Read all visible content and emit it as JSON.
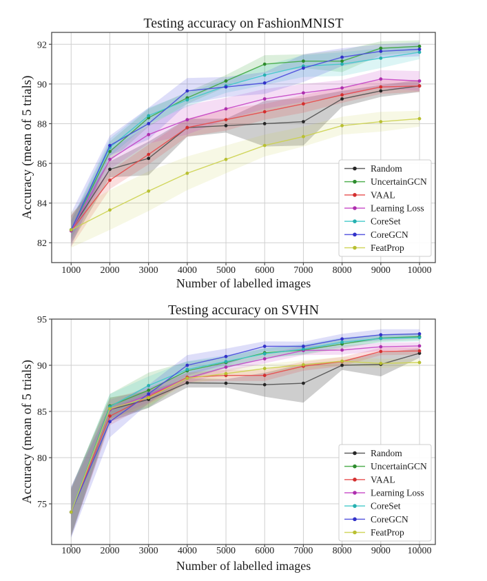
{
  "page": {
    "background": "#ffffff"
  },
  "chart_data": [
    {
      "type": "line",
      "title": "Testing accuracy on FashionMNIST",
      "xlabel": "Number of labelled images",
      "ylabel": "Accuracy (mean of 5 trials)",
      "x": [
        1000,
        2000,
        3000,
        4000,
        5000,
        6000,
        7000,
        8000,
        9000,
        10000
      ],
      "xticks": [
        1000,
        2000,
        3000,
        4000,
        5000,
        6000,
        7000,
        8000,
        9000,
        10000
      ],
      "yticks": [
        82,
        84,
        86,
        88,
        90,
        92
      ],
      "xlim": [
        497,
        10409
      ],
      "ylim": [
        81.0,
        92.6
      ],
      "grid": true,
      "legend_position": "lower right",
      "series": [
        {
          "name": "Random",
          "color": "#4f4f4f",
          "marker_color": "#262626",
          "band_alpha": 0.28,
          "values": [
            82.65,
            85.7,
            86.25,
            87.8,
            87.9,
            88.0,
            88.1,
            89.25,
            89.65,
            89.9
          ],
          "band": [
            0.7,
            0.4,
            0.85,
            0.45,
            0.35,
            1.15,
            1.2,
            0.4,
            0.3,
            0.3
          ]
        },
        {
          "name": "UncertainGCN",
          "color": "#3fa73f",
          "marker_color": "#2e8b2e",
          "band_alpha": 0.18,
          "values": [
            82.65,
            86.6,
            88.3,
            89.3,
            90.15,
            91.0,
            91.15,
            91.15,
            91.8,
            91.9
          ],
          "band": [
            0.45,
            0.5,
            0.45,
            0.3,
            0.3,
            0.45,
            0.35,
            0.55,
            0.35,
            0.3
          ]
        },
        {
          "name": "VAAL",
          "color": "#e84a4a",
          "marker_color": "#d32f2f",
          "band_alpha": 0.18,
          "values": [
            82.6,
            85.15,
            86.45,
            87.8,
            88.2,
            88.6,
            89.0,
            89.45,
            89.85,
            89.9
          ],
          "band": [
            0.8,
            0.45,
            0.5,
            0.45,
            0.55,
            0.4,
            0.45,
            0.4,
            0.35,
            0.3
          ]
        },
        {
          "name": "Learning Loss",
          "color": "#c544c5",
          "marker_color": "#ad2fad",
          "band_alpha": 0.18,
          "values": [
            82.6,
            86.2,
            87.45,
            88.2,
            88.75,
            89.25,
            89.55,
            89.8,
            90.25,
            90.15
          ],
          "band": [
            0.55,
            0.5,
            0.45,
            0.75,
            0.55,
            0.5,
            0.45,
            0.4,
            0.45,
            0.5
          ]
        },
        {
          "name": "CoreSet",
          "color": "#3fc9c9",
          "marker_color": "#27b0b0",
          "band_alpha": 0.18,
          "values": [
            82.65,
            86.8,
            88.4,
            89.2,
            89.9,
            90.45,
            90.9,
            91.0,
            91.3,
            91.6
          ],
          "band": [
            0.5,
            0.45,
            0.4,
            0.35,
            0.35,
            0.5,
            0.55,
            0.6,
            0.5,
            0.35
          ]
        },
        {
          "name": "CoreGCN",
          "color": "#4848dc",
          "marker_color": "#3232c8",
          "band_alpha": 0.18,
          "values": [
            82.65,
            86.9,
            88.0,
            89.65,
            89.85,
            90.05,
            90.8,
            91.35,
            91.65,
            91.75
          ],
          "band": [
            0.85,
            0.5,
            0.8,
            0.65,
            0.5,
            0.55,
            0.7,
            0.45,
            0.35,
            0.35
          ]
        },
        {
          "name": "FeatProp",
          "color": "#ccd24e",
          "marker_color": "#b8bf32",
          "band_alpha": 0.15,
          "values": [
            82.65,
            83.65,
            84.6,
            85.5,
            86.2,
            86.9,
            87.35,
            87.9,
            88.1,
            88.25
          ],
          "band": [
            0.9,
            1.0,
            1.0,
            0.85,
            0.7,
            0.55,
            0.5,
            0.45,
            0.5,
            0.4
          ]
        }
      ]
    },
    {
      "type": "line",
      "title": "Testing accuracy on SVHN",
      "xlabel": "Number of labelled images",
      "ylabel": "Accuracy (mean of 5 trials)",
      "x": [
        1000,
        2000,
        3000,
        4000,
        5000,
        6000,
        7000,
        8000,
        9000,
        10000
      ],
      "xticks": [
        1000,
        2000,
        3000,
        4000,
        5000,
        6000,
        7000,
        8000,
        9000,
        10000
      ],
      "yticks": [
        75,
        80,
        85,
        90,
        95
      ],
      "xlim": [
        497,
        10409
      ],
      "ylim": [
        70.6,
        95.0
      ],
      "grid": true,
      "legend_position": "lower right",
      "series": [
        {
          "name": "Random",
          "color": "#4f4f4f",
          "marker_color": "#262626",
          "band_alpha": 0.28,
          "values": [
            74.1,
            85.2,
            86.3,
            88.1,
            88.05,
            87.9,
            88.05,
            90.0,
            90.1,
            91.3
          ],
          "band": [
            2.7,
            1.3,
            0.9,
            0.5,
            0.45,
            1.3,
            2.1,
            0.5,
            1.3,
            0.5
          ]
        },
        {
          "name": "UncertainGCN",
          "color": "#3fa73f",
          "marker_color": "#2e8b2e",
          "band_alpha": 0.18,
          "values": [
            74.1,
            85.6,
            87.3,
            89.4,
            90.3,
            91.35,
            91.65,
            92.3,
            92.95,
            93.1
          ],
          "band": [
            2.5,
            1.3,
            1.9,
            1.0,
            0.6,
            0.5,
            0.5,
            0.5,
            0.4,
            0.4
          ]
        },
        {
          "name": "VAAL",
          "color": "#e84a4a",
          "marker_color": "#d32f2f",
          "band_alpha": 0.18,
          "values": [
            74.1,
            84.5,
            86.6,
            88.7,
            88.9,
            88.9,
            89.9,
            90.4,
            91.5,
            91.55
          ],
          "band": [
            2.5,
            1.0,
            0.8,
            0.5,
            0.6,
            0.6,
            0.5,
            0.5,
            0.4,
            0.4
          ]
        },
        {
          "name": "Learning Loss",
          "color": "#c544c5",
          "marker_color": "#ad2fad",
          "band_alpha": 0.18,
          "values": [
            74.1,
            85.2,
            86.8,
            88.6,
            89.8,
            90.7,
            91.6,
            91.65,
            92.0,
            92.1
          ],
          "band": [
            2.5,
            1.1,
            0.8,
            0.6,
            0.5,
            0.5,
            0.5,
            0.5,
            0.45,
            0.4
          ]
        },
        {
          "name": "CoreSet",
          "color": "#3fc9c9",
          "marker_color": "#27b0b0",
          "band_alpha": 0.18,
          "values": [
            74.1,
            85.5,
            87.8,
            89.55,
            90.4,
            91.25,
            91.75,
            92.5,
            92.9,
            93.0
          ],
          "band": [
            2.5,
            1.4,
            1.0,
            0.9,
            0.7,
            0.6,
            0.55,
            0.5,
            0.45,
            0.4
          ]
        },
        {
          "name": "CoreGCN",
          "color": "#4848dc",
          "marker_color": "#3232c8",
          "band_alpha": 0.18,
          "values": [
            74.1,
            83.9,
            86.9,
            90.0,
            90.95,
            92.05,
            92.05,
            92.85,
            93.3,
            93.4
          ],
          "band": [
            2.8,
            1.7,
            1.0,
            1.1,
            0.85,
            0.55,
            0.5,
            0.55,
            0.6,
            0.5
          ]
        },
        {
          "name": "FeatProp",
          "color": "#ccd24e",
          "marker_color": "#b8bf32",
          "band_alpha": 0.15,
          "values": [
            74.1,
            85.3,
            86.5,
            88.6,
            89.1,
            89.65,
            90.05,
            90.45,
            90.2,
            90.3
          ],
          "band": [
            2.5,
            1.2,
            0.9,
            0.6,
            0.5,
            0.5,
            0.5,
            0.45,
            0.5,
            0.4
          ]
        }
      ]
    }
  ],
  "style": {
    "grid_color": "#cfcfcf",
    "spine_color": "#4a4a4a",
    "legend_border": "#cccccc",
    "legend_fill": "#ffffff"
  }
}
